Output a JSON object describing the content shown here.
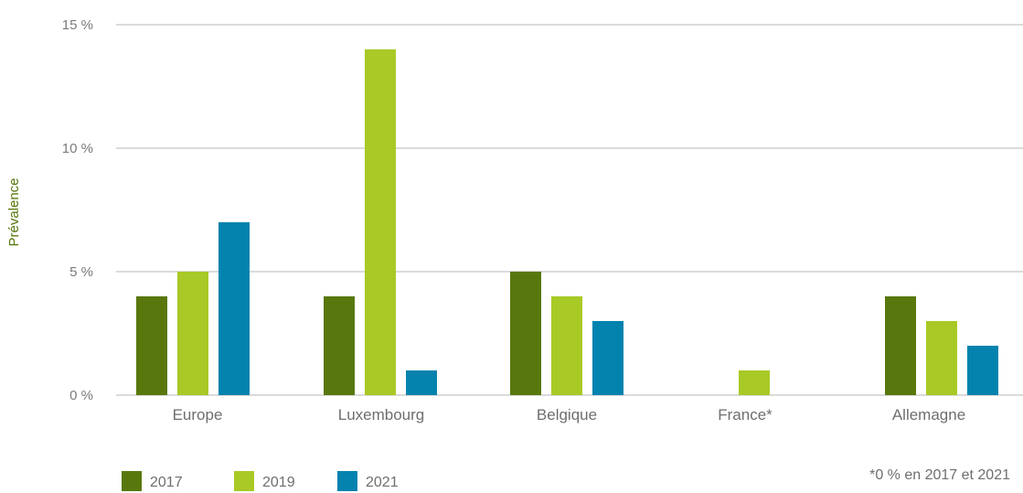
{
  "chart_data": {
    "type": "bar",
    "categories": [
      "Europe",
      "Luxembourg",
      "Belgique",
      "France*",
      "Allemagne"
    ],
    "series": [
      {
        "name": "2017",
        "color": "#58780d",
        "values": [
          4,
          4,
          5,
          0,
          4
        ]
      },
      {
        "name": "2019",
        "color": "#a8c926",
        "values": [
          5,
          14,
          4,
          1,
          3
        ]
      },
      {
        "name": "2021",
        "color": "#0383ae",
        "values": [
          7,
          1,
          3,
          0,
          2
        ]
      }
    ],
    "ylabel": "Prévalence",
    "ylim": [
      0,
      15
    ],
    "yticks": [
      0,
      5,
      10,
      15
    ],
    "ytick_labels": [
      "0 %",
      "5 %",
      "10 %",
      "15 %"
    ],
    "ylabel_color": "#58780d",
    "grid": true,
    "legend_position": "bottom-left",
    "footnote": "*0 % en 2017 et 2021"
  }
}
